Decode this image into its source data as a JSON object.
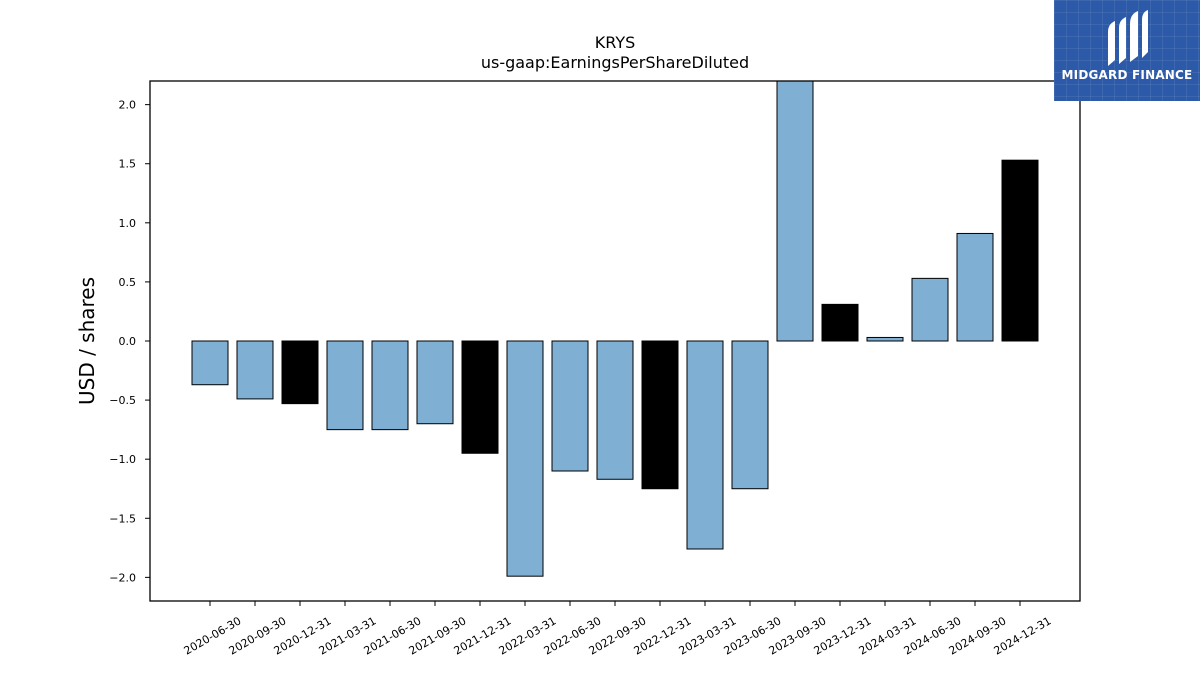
{
  "brand": {
    "name": "MIDGARD FINANCE",
    "logo_icon": "midgard-m-logo-icon",
    "background_color": "#2d5aa8"
  },
  "chart_data": {
    "type": "bar",
    "title": "KRYS",
    "subtitle": "us-gaap:EarningsPerShareDiluted",
    "xlabel": "",
    "ylabel": "USD / shares",
    "ylim": [
      -2.2,
      2.2
    ],
    "yticks": [
      -2.0,
      -1.5,
      -1.0,
      -0.5,
      0.0,
      0.5,
      1.0,
      1.5,
      2.0
    ],
    "ytick_labels": [
      "−2.0",
      "−1.5",
      "−1.0",
      "−0.5",
      "0.0",
      "0.5",
      "1.0",
      "1.5",
      "2.0"
    ],
    "grid": false,
    "categories": [
      "2020-06-30",
      "2020-09-30",
      "2020-12-31",
      "2021-03-31",
      "2021-06-30",
      "2021-09-30",
      "2021-12-31",
      "2022-03-31",
      "2022-06-30",
      "2022-09-30",
      "2022-12-31",
      "2023-03-31",
      "2023-06-30",
      "2023-09-30",
      "2023-12-31",
      "2024-03-31",
      "2024-06-30",
      "2024-09-30",
      "2024-12-31"
    ],
    "values": [
      -0.37,
      -0.49,
      -0.53,
      -0.75,
      -0.75,
      -0.7,
      -0.95,
      -1.99,
      -1.1,
      -1.17,
      -1.25,
      -1.76,
      -1.25,
      2.2,
      0.31,
      0.03,
      0.53,
      0.91,
      1.53
    ],
    "fiscal_year_end": [
      false,
      false,
      true,
      false,
      false,
      false,
      true,
      false,
      false,
      false,
      true,
      false,
      false,
      false,
      true,
      false,
      false,
      false,
      true
    ],
    "colors": {
      "quarter": "#7fb0d4",
      "fiscal_year": "#000000",
      "edge": "#000000"
    }
  }
}
